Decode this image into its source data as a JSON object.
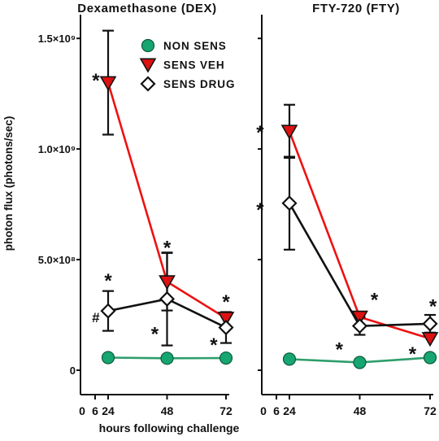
{
  "chart_data": {
    "type": "line",
    "ylabel": "photon flux (photons/sec)",
    "xlabel": "hours following challenge",
    "ylim": [
      0,
      1600000000
    ],
    "xlim": [
      0,
      72
    ],
    "x_ticks": [
      0,
      6,
      24,
      48,
      72
    ],
    "y_ticks": [
      {
        "value": 0,
        "label": "0"
      },
      {
        "value": 500000000,
        "label": "5.0×10⁸"
      },
      {
        "value": 1000000000,
        "label": "1.0×10⁹"
      },
      {
        "value": 1500000000,
        "label": "1.5×10⁹"
      }
    ],
    "grid": false,
    "legend_position": "top-right of left panel",
    "legend": [
      {
        "label": "NON SENS",
        "series": "non_sens"
      },
      {
        "label": "SENS VEH",
        "series": "sens_veh"
      },
      {
        "label": "SENS DRUG",
        "series": "sens_drug"
      }
    ],
    "series_styles": {
      "non_sens": {
        "color": "#17a672",
        "line_color": "#2e9e6b",
        "marker": "circle"
      },
      "sens_veh": {
        "color": "#dd1111",
        "line_color": "#ee1111",
        "marker": "triangle-down"
      },
      "sens_drug": {
        "color": "#ffffff",
        "line_color": "#111111",
        "marker": "diamond"
      }
    },
    "panels": [
      {
        "title": "Dexamethasone (DEX)",
        "x": [
          24,
          48,
          72
        ],
        "series": [
          {
            "key": "sens_veh",
            "values": [
              1300000000,
              400000000,
              235000000
            ],
            "errors": [
              235000000,
              130000000,
              0
            ]
          },
          {
            "key": "sens_drug",
            "values": [
              268000000,
              322000000,
              193000000
            ],
            "errors": [
              90000000,
              210000000,
              70000000
            ]
          },
          {
            "key": "non_sens",
            "values": [
              57000000,
              54000000,
              55000000
            ],
            "errors": [
              0,
              0,
              0
            ]
          }
        ],
        "annotations": [
          {
            "text": "*",
            "x": 19,
            "y": 1320000000
          },
          {
            "text": "*",
            "x": 48,
            "y": 565000000
          },
          {
            "text": "*",
            "x": 24,
            "y": 415000000
          },
          {
            "text": "#",
            "x": 19,
            "y": 240000000
          },
          {
            "text": "*",
            "x": 43,
            "y": 175000000
          },
          {
            "text": "*",
            "x": 72,
            "y": 320000000
          },
          {
            "text": "*",
            "x": 67,
            "y": 125000000
          }
        ]
      },
      {
        "title": "FTY-720 (FTY)",
        "x": [
          24,
          48,
          72
        ],
        "series": [
          {
            "key": "sens_veh",
            "values": [
              1080000000,
              240000000,
              143000000
            ],
            "errors": [
              120000000,
              0,
              0
            ]
          },
          {
            "key": "sens_drug",
            "values": [
              755000000,
              200000000,
              210000000
            ],
            "errors": [
              210000000,
              40000000,
              40000000
            ]
          },
          {
            "key": "non_sens",
            "values": [
              50000000,
              35000000,
              57000000
            ],
            "errors": [
              0,
              0,
              0
            ]
          }
        ],
        "annotations": [
          {
            "text": "*",
            "x": 14,
            "y": 1085000000
          },
          {
            "text": "*",
            "x": 14,
            "y": 735000000
          },
          {
            "text": "*",
            "x": 53,
            "y": 330000000
          },
          {
            "text": "*",
            "x": 41,
            "y": 105000000
          },
          {
            "text": "*",
            "x": 73,
            "y": 300000000
          },
          {
            "text": "*",
            "x": 66,
            "y": 85000000
          }
        ]
      }
    ]
  }
}
